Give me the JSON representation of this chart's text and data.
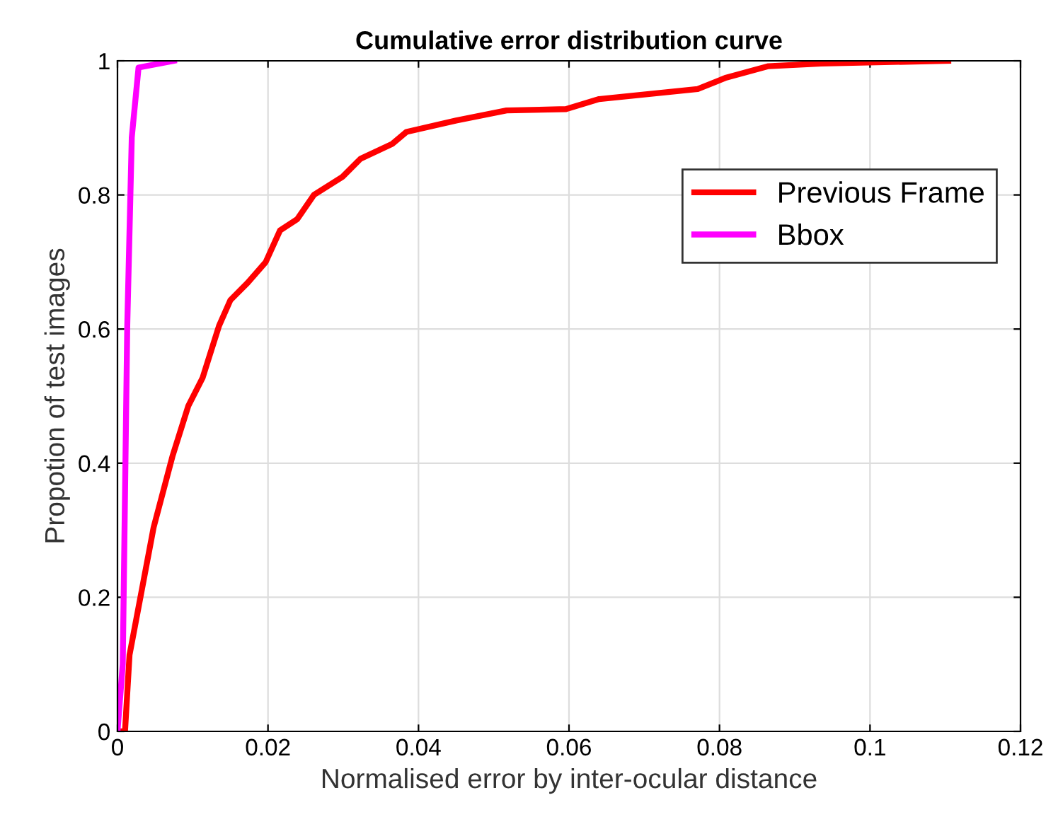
{
  "chart_data": {
    "type": "line",
    "title": "Cumulative error distribution curve",
    "xlabel": "Normalised error by inter-ocular distance",
    "ylabel": "Propotion of test images",
    "series": [
      {
        "name": "Previous Frame",
        "color": "#ff0000",
        "x": [
          0,
          0.001,
          0.0016,
          0.0048,
          0.0073,
          0.0094,
          0.0113,
          0.0135,
          0.015,
          0.0173,
          0.0197,
          0.0216,
          0.0239,
          0.0261,
          0.0299,
          0.0323,
          0.0365,
          0.0384,
          0.045,
          0.0517,
          0.0596,
          0.064,
          0.0771,
          0.0809,
          0.0865,
          0.0935,
          0.1104
        ],
        "values": [
          0,
          0,
          0.114,
          0.304,
          0.41,
          0.485,
          0.527,
          0.605,
          0.643,
          0.669,
          0.7,
          0.747,
          0.764,
          0.8,
          0.827,
          0.854,
          0.876,
          0.894,
          0.911,
          0.926,
          0.928,
          0.943,
          0.958,
          0.975,
          0.992,
          0.996,
          1.0
        ]
      },
      {
        "name": "Bbox",
        "color": "#ff00ff",
        "x": [
          0,
          0.0007,
          0.0013,
          0.0019,
          0.0028,
          0.0075
        ],
        "values": [
          0,
          0.1,
          0.605,
          0.886,
          0.99,
          1.0
        ]
      }
    ],
    "xlim": [
      0,
      0.12
    ],
    "ylim": [
      0,
      1
    ],
    "xticks": [
      0,
      0.02,
      0.04,
      0.06,
      0.08,
      0.1,
      0.12
    ],
    "yticks": [
      0,
      0.2,
      0.4,
      0.6,
      0.8,
      1
    ],
    "grid": true,
    "legend": "top right",
    "line_style": "solid",
    "marker": "none"
  }
}
